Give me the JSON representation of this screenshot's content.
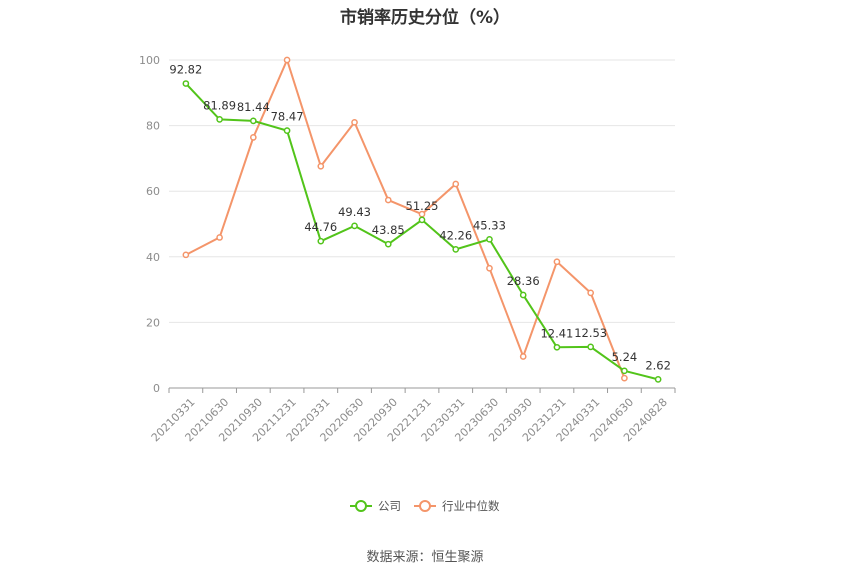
{
  "title": "市销率历史分位（%）",
  "source": "数据来源：恒生聚源",
  "chart_data": {
    "type": "line",
    "title": "市销率历史分位（%）",
    "categories": [
      "20210331",
      "20210630",
      "20210930",
      "20211231",
      "20220331",
      "20220630",
      "20220930",
      "20221231",
      "20230331",
      "20230630",
      "20230930",
      "20231231",
      "20240331",
      "20240630",
      "20240828"
    ],
    "ylim": [
      0,
      100
    ],
    "yticks": [
      0,
      20,
      40,
      60,
      80,
      100
    ],
    "grid": true,
    "legend_position": "bottom",
    "series": [
      {
        "name": "公司",
        "color": "#52c41a",
        "values": [
          92.82,
          81.89,
          81.44,
          78.47,
          44.76,
          49.43,
          43.85,
          51.25,
          42.26,
          45.33,
          28.36,
          12.41,
          12.53,
          5.24,
          2.62
        ],
        "labels": [
          "92.82",
          "81.89",
          "81.44",
          "78.47",
          "44.76",
          "49.43",
          "43.85",
          "51.25",
          "42.26",
          "45.33",
          "28.36",
          "12.41",
          "12.53",
          "5.24",
          "2.62"
        ]
      },
      {
        "name": "行业中位数",
        "color": "#f4956a",
        "values": [
          40.6,
          45.9,
          76.4,
          100,
          67.6,
          81,
          57.3,
          53,
          62.2,
          36.5,
          9.6,
          38.5,
          29,
          3,
          null
        ]
      }
    ]
  }
}
